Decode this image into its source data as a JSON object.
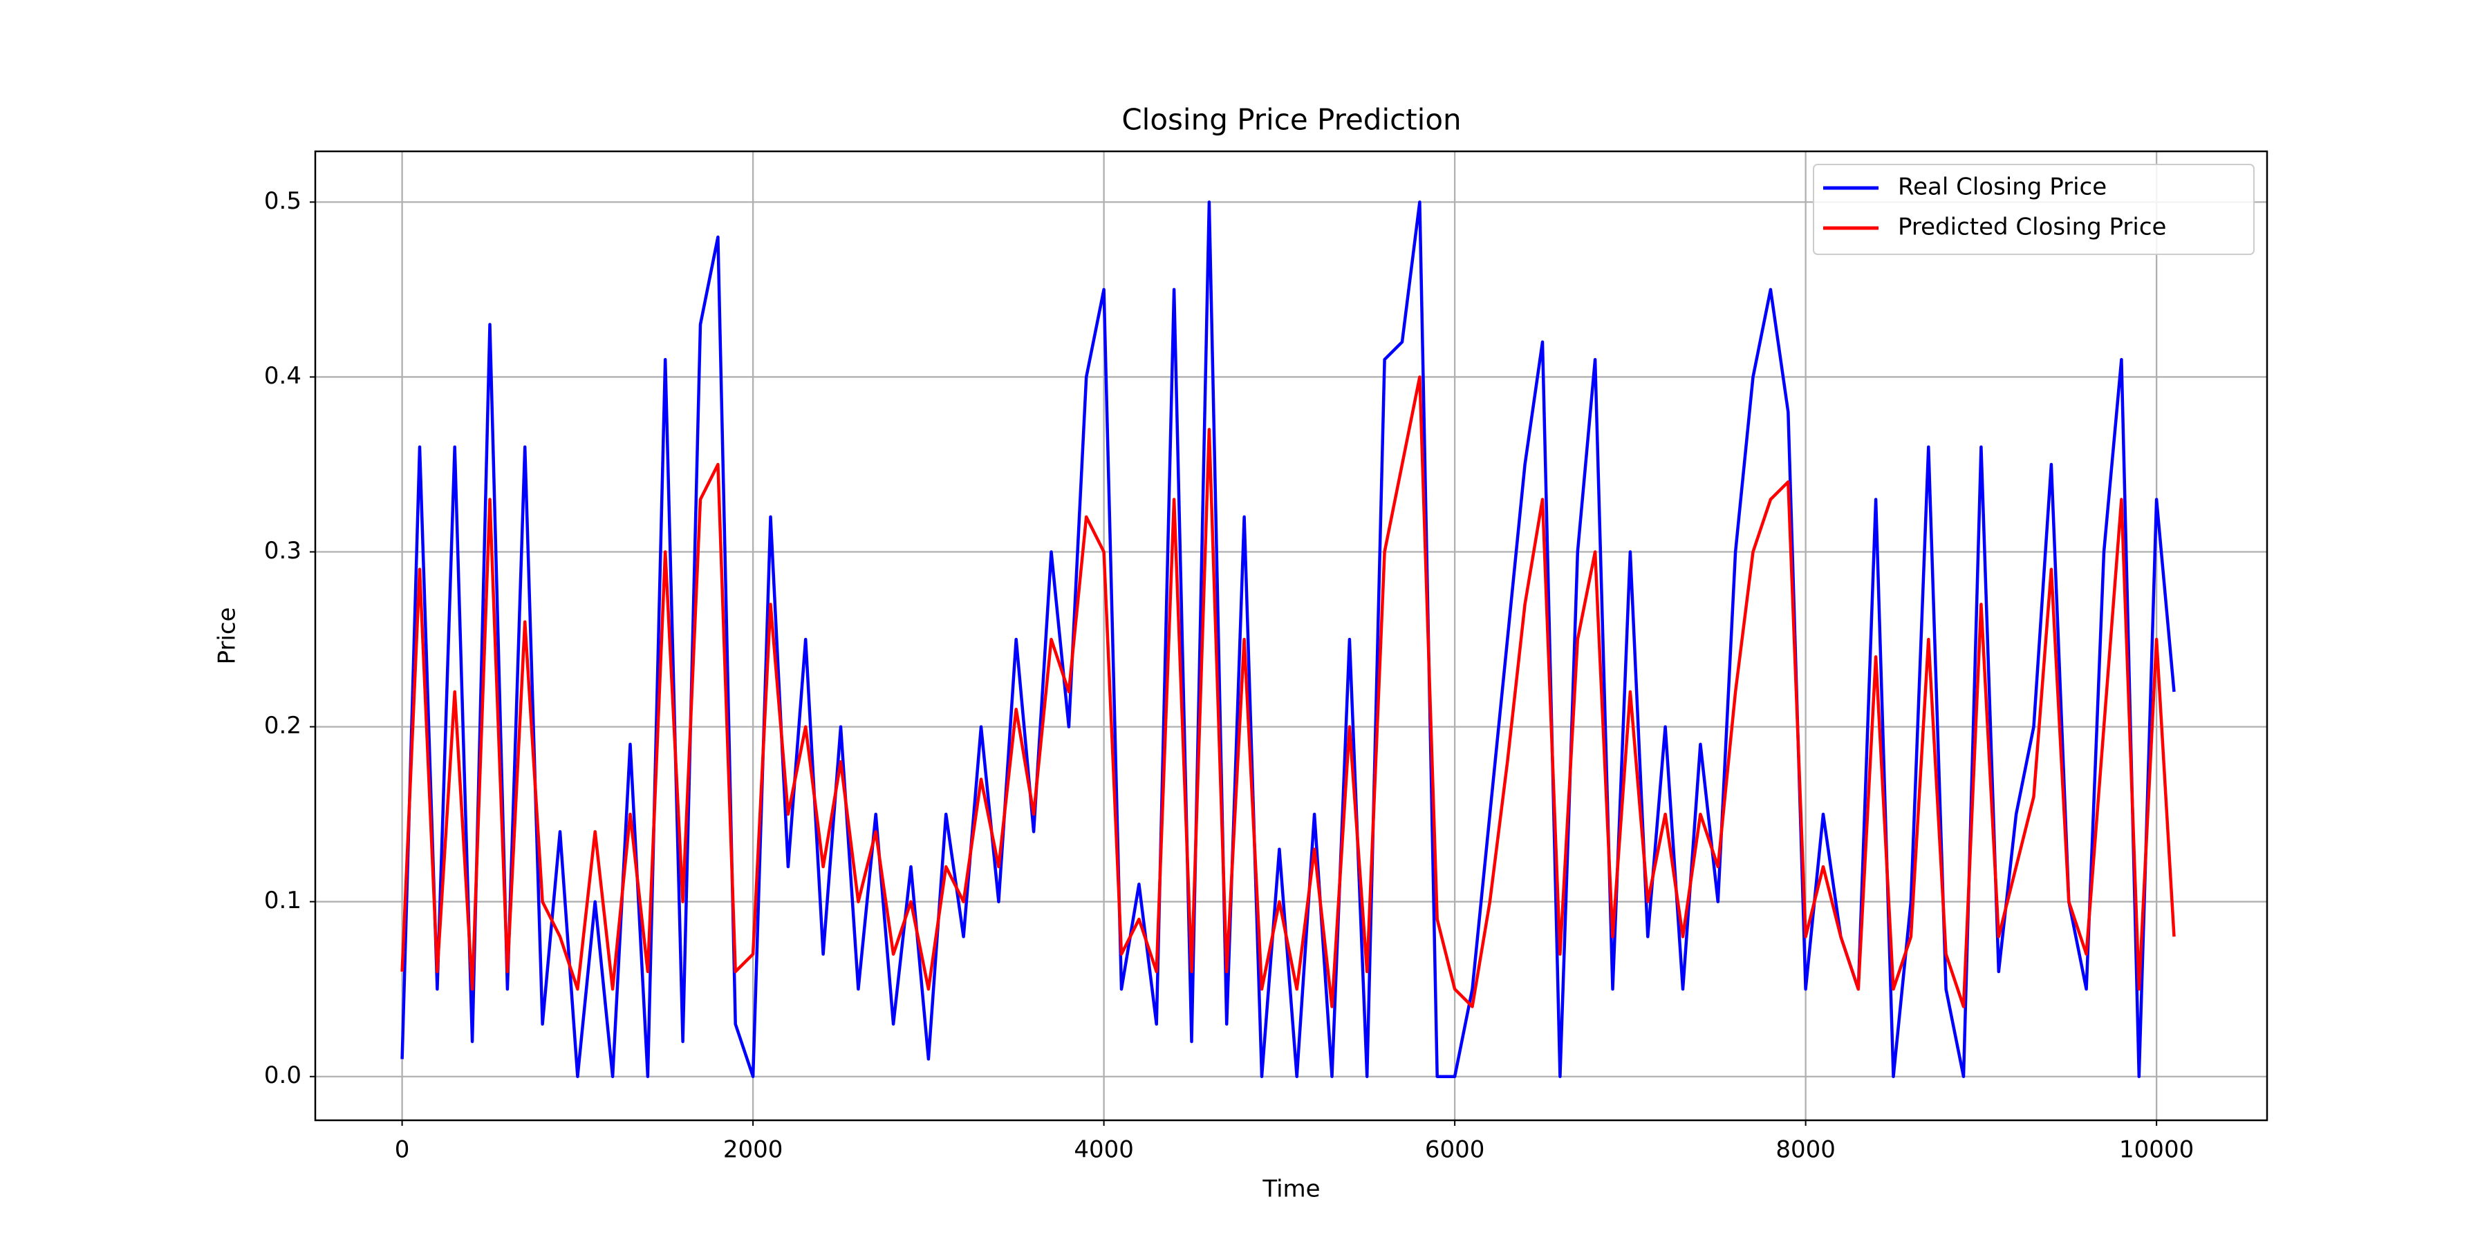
{
  "chart_data": {
    "type": "line",
    "title": "Closing Price Prediction",
    "xlabel": "Time",
    "ylabel": "Price",
    "x": [
      0,
      100,
      200,
      300,
      400,
      500,
      600,
      700,
      800,
      900,
      1000,
      1100,
      1200,
      1300,
      1400,
      1500,
      1600,
      1700,
      1800,
      1900,
      2000,
      2100,
      2200,
      2300,
      2400,
      2500,
      2600,
      2700,
      2800,
      2900,
      3000,
      3100,
      3200,
      3300,
      3400,
      3500,
      3600,
      3700,
      3800,
      3900,
      4000,
      4100,
      4200,
      4300,
      4400,
      4500,
      4600,
      4700,
      4800,
      4900,
      5000,
      5100,
      5200,
      5300,
      5400,
      5500,
      5600,
      5700,
      5800,
      5900,
      6000,
      6100,
      6200,
      6300,
      6400,
      6500,
      6600,
      6700,
      6800,
      6900,
      7000,
      7100,
      7200,
      7300,
      7400,
      7500,
      7600,
      7700,
      7800,
      7900,
      8000,
      8100,
      8200,
      8300,
      8400,
      8500,
      8600,
      8700,
      8800,
      8900,
      9000,
      9100,
      9200,
      9300,
      9400,
      9500,
      9600,
      9700,
      9800,
      9900,
      10000,
      10100
    ],
    "series": [
      {
        "name": "Real Closing Price",
        "color": "#0000ff",
        "values": [
          0.01,
          0.36,
          0.05,
          0.36,
          0.02,
          0.43,
          0.05,
          0.36,
          0.03,
          0.14,
          0.0,
          0.1,
          0.0,
          0.19,
          0.0,
          0.41,
          0.02,
          0.43,
          0.48,
          0.03,
          0.0,
          0.32,
          0.12,
          0.25,
          0.07,
          0.2,
          0.05,
          0.15,
          0.03,
          0.12,
          0.01,
          0.15,
          0.08,
          0.2,
          0.1,
          0.25,
          0.14,
          0.3,
          0.2,
          0.4,
          0.45,
          0.05,
          0.11,
          0.03,
          0.45,
          0.02,
          0.5,
          0.03,
          0.32,
          0.0,
          0.13,
          0.0,
          0.15,
          0.0,
          0.25,
          0.0,
          0.41,
          0.42,
          0.5,
          0.0,
          0.0,
          0.05,
          0.15,
          0.25,
          0.35,
          0.42,
          0.0,
          0.3,
          0.41,
          0.05,
          0.3,
          0.08,
          0.2,
          0.05,
          0.19,
          0.1,
          0.3,
          0.4,
          0.45,
          0.38,
          0.05,
          0.15,
          0.08,
          0.05,
          0.33,
          0.0,
          0.1,
          0.36,
          0.05,
          0.0,
          0.36,
          0.06,
          0.15,
          0.2,
          0.35,
          0.1,
          0.05,
          0.3,
          0.41,
          0.0,
          0.33,
          0.22
        ]
      },
      {
        "name": "Predicted Closing Price",
        "color": "#ff0000",
        "values": [
          0.06,
          0.29,
          0.06,
          0.22,
          0.05,
          0.33,
          0.06,
          0.26,
          0.1,
          0.08,
          0.05,
          0.14,
          0.05,
          0.15,
          0.06,
          0.3,
          0.1,
          0.33,
          0.35,
          0.06,
          0.07,
          0.27,
          0.15,
          0.2,
          0.12,
          0.18,
          0.1,
          0.14,
          0.07,
          0.1,
          0.05,
          0.12,
          0.1,
          0.17,
          0.12,
          0.21,
          0.15,
          0.25,
          0.22,
          0.32,
          0.3,
          0.07,
          0.09,
          0.06,
          0.33,
          0.06,
          0.37,
          0.06,
          0.25,
          0.05,
          0.1,
          0.05,
          0.13,
          0.04,
          0.2,
          0.06,
          0.3,
          0.35,
          0.4,
          0.09,
          0.05,
          0.04,
          0.1,
          0.18,
          0.27,
          0.33,
          0.07,
          0.25,
          0.3,
          0.08,
          0.22,
          0.1,
          0.15,
          0.08,
          0.15,
          0.12,
          0.22,
          0.3,
          0.33,
          0.34,
          0.08,
          0.12,
          0.08,
          0.05,
          0.24,
          0.05,
          0.08,
          0.25,
          0.07,
          0.04,
          0.27,
          0.08,
          0.12,
          0.16,
          0.29,
          0.1,
          0.07,
          0.2,
          0.33,
          0.05,
          0.25,
          0.08
        ]
      }
    ],
    "xlim": [
      -495,
      10630
    ],
    "ylim": [
      -0.025,
      0.529
    ],
    "xticks": [
      0,
      2000,
      4000,
      6000,
      8000,
      10000
    ],
    "yticks": [
      {
        "value": 0,
        "label": "0.0"
      },
      0.1,
      0.2,
      0.3,
      0.4,
      0.5
    ],
    "grid": true,
    "legend": "upper right"
  }
}
